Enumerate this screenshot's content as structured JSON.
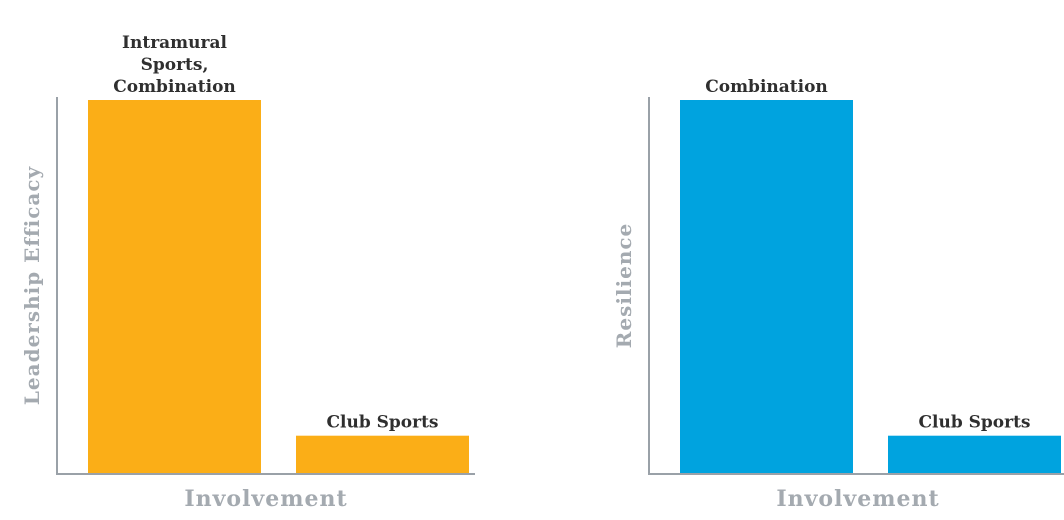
{
  "chart_data": [
    {
      "type": "bar",
      "categories": [
        "Intramural Sports, Combination",
        "Club Sports"
      ],
      "values": [
        100,
        10
      ],
      "bar_labels": [
        [
          "Intramural",
          "Sports,",
          "Combination"
        ],
        [
          "Club Sports"
        ]
      ],
      "ylabel": "Leadership Efficacy",
      "xlabel": "Involvement",
      "ylim": [
        0,
        100
      ],
      "color": "#FBAE17",
      "grid": false
    },
    {
      "type": "bar",
      "categories": [
        "Combination",
        "Club Sports"
      ],
      "values": [
        100,
        10
      ],
      "bar_labels": [
        [
          "Combination"
        ],
        [
          "Club Sports"
        ]
      ],
      "ylabel": "Resilience",
      "xlabel": "Involvement",
      "ylim": [
        0,
        100
      ],
      "color": "#00A3DF",
      "grid": false
    }
  ]
}
